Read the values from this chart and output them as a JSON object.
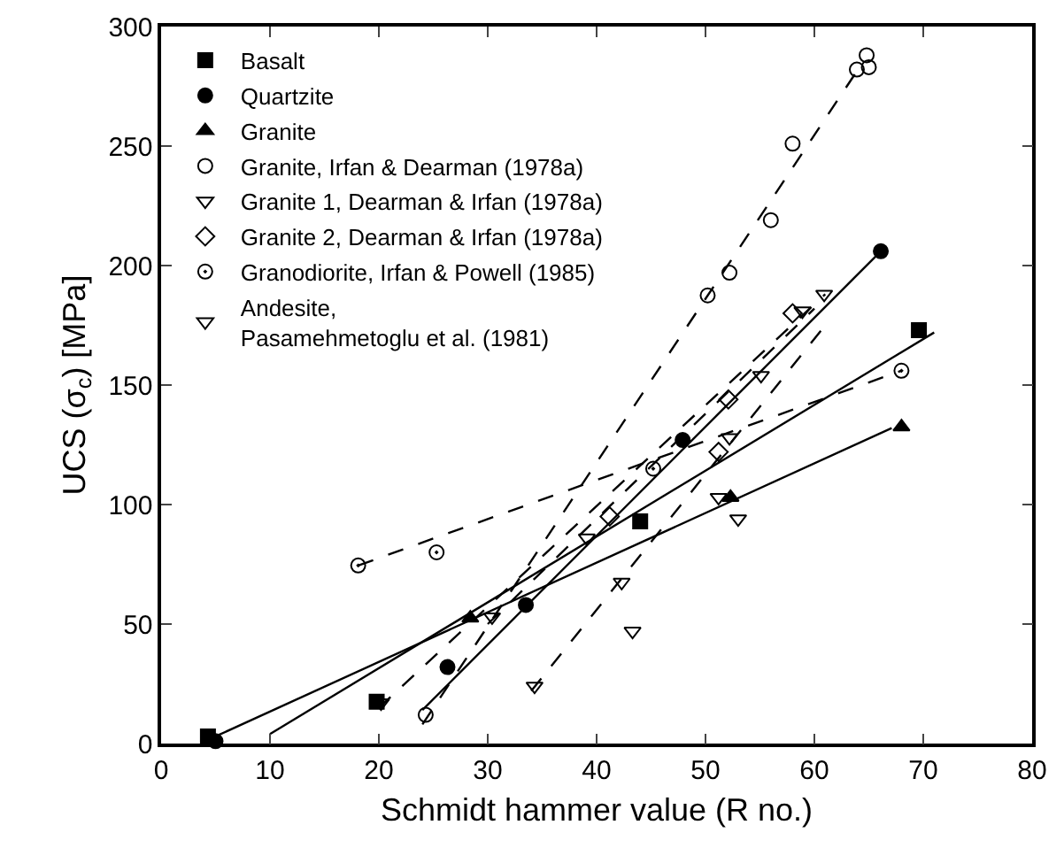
{
  "chart_data": {
    "type": "scatter",
    "xlabel": "Schmidt hammer value (R no.)",
    "ylabel": "UCS (σ$_{c}$) [MPa]",
    "xlim": [
      0,
      80
    ],
    "xticks": [
      0,
      10,
      20,
      30,
      40,
      50,
      60,
      70,
      80
    ],
    "ylim": [
      0,
      300
    ],
    "yticks": [
      0,
      50,
      100,
      150,
      200,
      250,
      300
    ],
    "grid": false,
    "legend": "top left",
    "series": [
      {
        "type": "scatter",
        "name": "Basalt",
        "color": "#000000",
        "marker": "square",
        "x": [
          4.3,
          19.8,
          44,
          69.6
        ],
        "values": [
          3,
          17.5,
          93,
          173
        ]
      },
      {
        "type": "line",
        "color": "#000000",
        "line_style": "solid",
        "marker": "none",
        "x": [
          10,
          71
        ],
        "values": [
          4,
          172
        ]
      },
      {
        "type": "scatter",
        "name": "Quartzite",
        "color": "#000000",
        "marker": "circle",
        "x": [
          5,
          26.3,
          33.5,
          47.9,
          66.1
        ],
        "values": [
          1,
          32,
          58,
          127,
          206
        ]
      },
      {
        "type": "line",
        "color": "#000000",
        "line_style": "solid",
        "marker": "none",
        "x": [
          24,
          66.1
        ],
        "values": [
          14,
          206
        ]
      },
      {
        "type": "scatter",
        "name": "Granite",
        "color": "#000000",
        "marker": "triangle",
        "x": [
          28.4,
          52.3,
          68
        ],
        "values": [
          52.5,
          103,
          132.5
        ]
      },
      {
        "type": "line",
        "color": "#000000",
        "line_style": "solid",
        "marker": "none",
        "x": [
          5,
          67.1
        ],
        "values": [
          3,
          132
        ]
      },
      {
        "type": "scatter",
        "name": "Granite, Irfan & Dearman (1978a)",
        "color": "#000000",
        "marker": "circle-open",
        "x": [
          24.3,
          50.2,
          52.2,
          56,
          58,
          63.9,
          65,
          64.8
        ],
        "values": [
          12,
          187.5,
          197,
          219,
          251,
          282,
          283,
          288
        ]
      },
      {
        "type": "line",
        "color": "#000000",
        "line_style": "dashed",
        "marker": "none",
        "x": [
          24,
          64
        ],
        "values": [
          8,
          282
        ]
      },
      {
        "type": "scatter",
        "name": "Granite 1, Dearman & Irfan (1978a)",
        "color": "#000000",
        "marker": "triangle-down-open",
        "x": [
          20.2,
          30.4,
          39.1,
          51.2,
          55.1,
          60.9
        ],
        "values": [
          17,
          53,
          86,
          103,
          154,
          188
        ]
      },
      {
        "type": "line",
        "color": "#000000",
        "line_style": "dashed",
        "marker": "none",
        "x": [
          20,
          61
        ],
        "values": [
          15,
          188
        ]
      },
      {
        "type": "scatter",
        "name": "Granite 2, Dearman & Irfan (1978a)",
        "color": "#000000",
        "marker": "diamond-open",
        "x": [
          41.2,
          51.2,
          52.1,
          58
        ],
        "values": [
          95,
          122,
          144,
          180
        ]
      },
      {
        "type": "line",
        "color": "#000000",
        "line_style": "dashed",
        "marker": "none",
        "x": [
          30,
          60
        ],
        "values": [
          50,
          182
        ]
      },
      {
        "type": "scatter",
        "name": "Granodiorite, Irfan & Powell (1985)",
        "color": "#000000",
        "marker": "circle-dot",
        "x": [
          18.1,
          25.3,
          45.2,
          68
        ],
        "values": [
          74.5,
          80,
          115,
          156
        ]
      },
      {
        "type": "line",
        "color": "#000000",
        "line_style": "dashed",
        "marker": "none",
        "x": [
          18.1,
          68
        ],
        "values": [
          74.5,
          156
        ]
      },
      {
        "type": "scatter",
        "name": "Andesite,\nPasamehmetoglu et al. (1981)",
        "color": "#000000",
        "marker": "triangle-down-open",
        "x": [
          34.3,
          42.3,
          43.3,
          52.2,
          53,
          58.9
        ],
        "values": [
          24,
          67.5,
          47,
          128,
          94,
          181
        ]
      },
      {
        "type": "line",
        "color": "#000000",
        "line_style": "dashed",
        "marker": "none",
        "x": [
          34,
          61
        ],
        "values": [
          22,
          175
        ]
      }
    ]
  }
}
